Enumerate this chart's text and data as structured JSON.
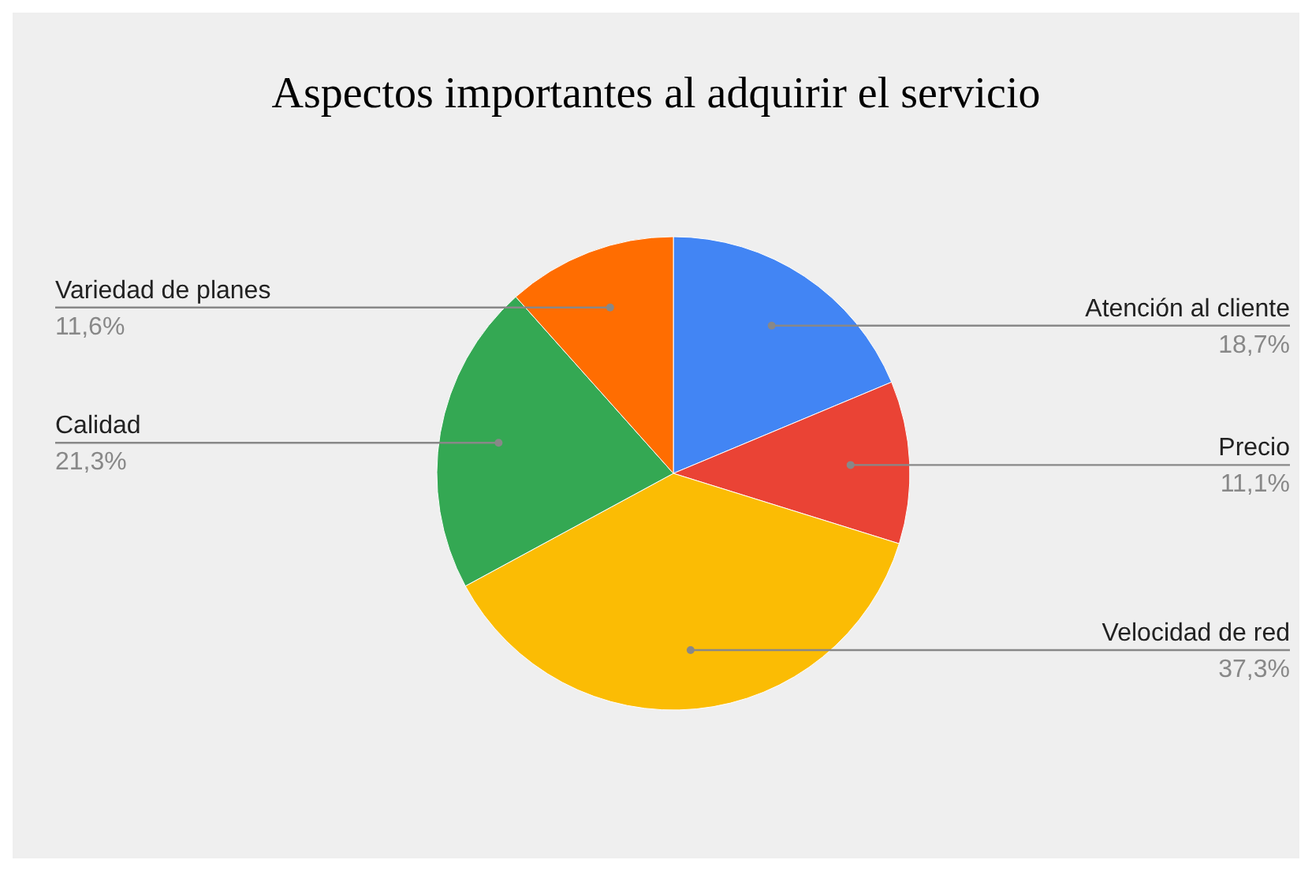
{
  "chart_data": {
    "type": "pie",
    "title": "Aspectos importantes al adquirir el servicio",
    "categories": [
      "Atención al cliente",
      "Precio",
      "Velocidad de red",
      "Calidad",
      "Variedad de planes"
    ],
    "values": [
      18.7,
      11.1,
      37.3,
      21.3,
      11.6
    ],
    "colors": [
      "#4285f4",
      "#ea4335",
      "#fbbc04",
      "#34a853",
      "#ff6d01"
    ],
    "value_labels": [
      "18,7%",
      "11,1%",
      "37,3%",
      "21,3%",
      "11,6%"
    ]
  }
}
